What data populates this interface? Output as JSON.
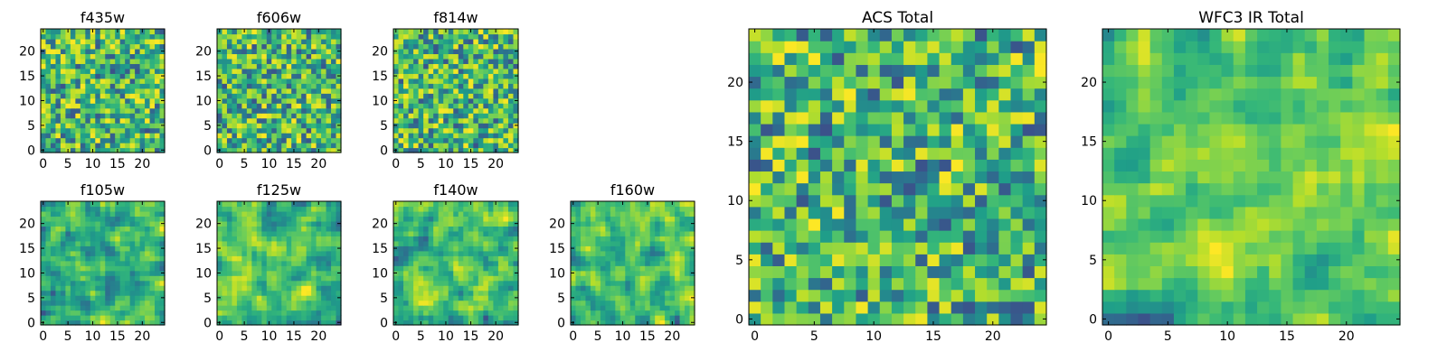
{
  "chart_data": [
    {
      "type": "heatmap",
      "title": "f435w",
      "size": 25,
      "xticks": [
        0,
        5,
        10,
        15,
        20
      ],
      "yticks": [
        0,
        5,
        10,
        15,
        20
      ],
      "colormap": "viridis",
      "smoothness": 0,
      "seed": 11
    },
    {
      "type": "heatmap",
      "title": "f606w",
      "size": 25,
      "xticks": [
        0,
        5,
        10,
        15,
        20
      ],
      "yticks": [
        0,
        5,
        10,
        15,
        20
      ],
      "colormap": "viridis",
      "smoothness": 0,
      "seed": 23
    },
    {
      "type": "heatmap",
      "title": "f814w",
      "size": 25,
      "xticks": [
        0,
        5,
        10,
        15,
        20
      ],
      "yticks": [
        0,
        5,
        10,
        15,
        20
      ],
      "colormap": "viridis",
      "smoothness": 0,
      "seed": 37
    },
    {
      "type": "heatmap",
      "title": "f105w",
      "size": 25,
      "xticks": [
        0,
        5,
        10,
        15,
        20
      ],
      "yticks": [
        0,
        5,
        10,
        15,
        20
      ],
      "colormap": "viridis",
      "smoothness": 1,
      "seed": 41
    },
    {
      "type": "heatmap",
      "title": "f125w",
      "size": 25,
      "xticks": [
        0,
        5,
        10,
        15,
        20
      ],
      "yticks": [
        0,
        5,
        10,
        15,
        20
      ],
      "colormap": "viridis",
      "smoothness": 1,
      "seed": 53
    },
    {
      "type": "heatmap",
      "title": "f140w",
      "size": 25,
      "xticks": [
        0,
        5,
        10,
        15,
        20
      ],
      "yticks": [
        0,
        5,
        10,
        15,
        20
      ],
      "colormap": "viridis",
      "smoothness": 1,
      "seed": 67
    },
    {
      "type": "heatmap",
      "title": "f160w",
      "size": 25,
      "xticks": [
        0,
        5,
        10,
        15,
        20
      ],
      "yticks": [
        0,
        5,
        10,
        15,
        20
      ],
      "colormap": "viridis",
      "smoothness": 1,
      "seed": 79
    },
    {
      "type": "heatmap",
      "title": "ACS Total",
      "size": 25,
      "xticks": [
        0,
        5,
        10,
        15,
        20
      ],
      "yticks": [
        0,
        5,
        10,
        15,
        20
      ],
      "colormap": "viridis",
      "smoothness": 0,
      "seed": 83
    },
    {
      "type": "heatmap",
      "title": "WFC3 IR Total",
      "size": 25,
      "xticks": [
        0,
        5,
        10,
        15,
        20
      ],
      "yticks": [
        0,
        5,
        10,
        15,
        20
      ],
      "colormap": "viridis",
      "smoothness": 1,
      "seed": 97
    }
  ]
}
